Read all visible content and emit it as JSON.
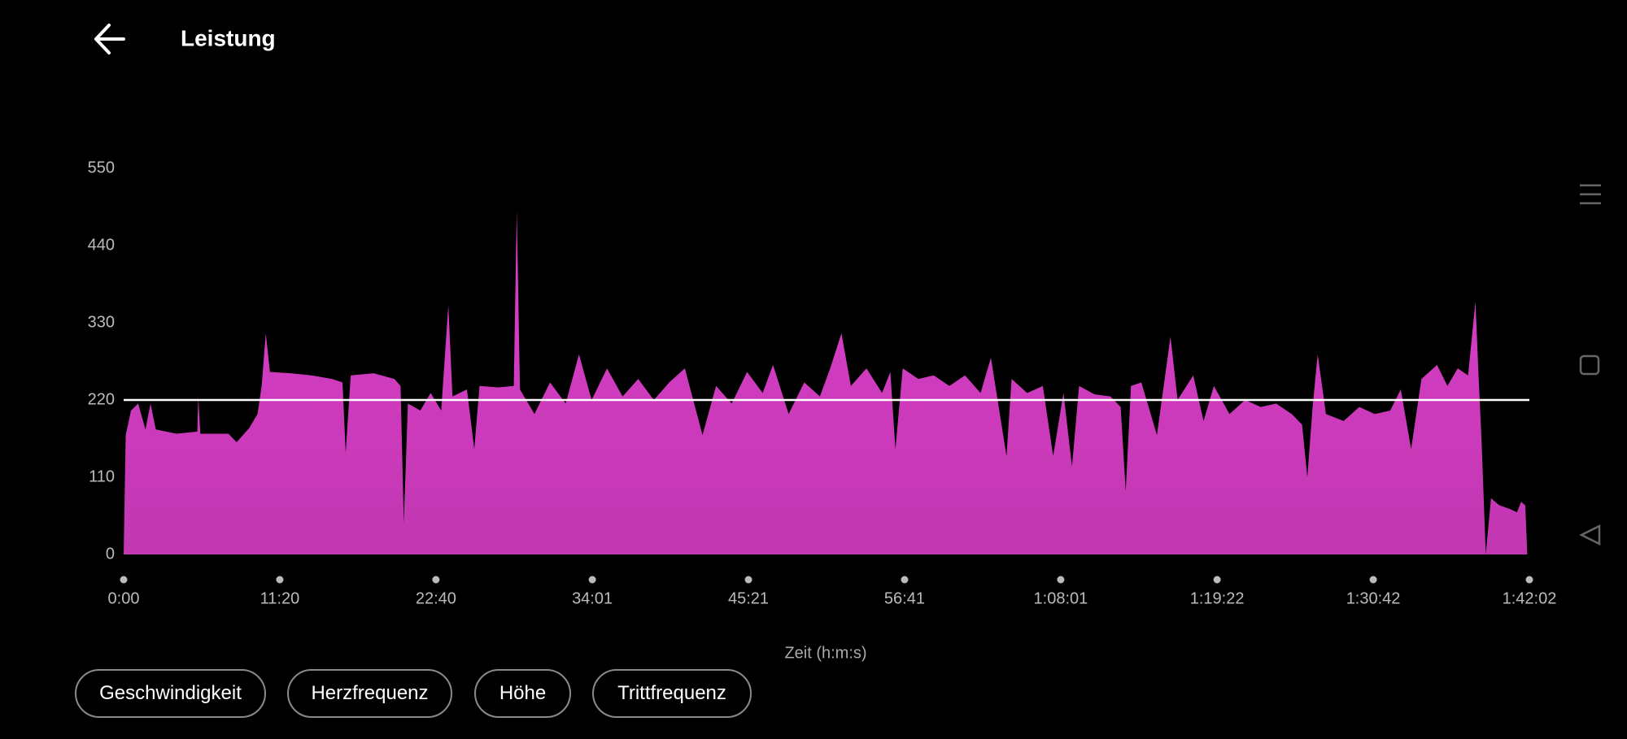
{
  "header": {
    "title": "Leistung"
  },
  "chart_data": {
    "type": "area",
    "x": [
      0,
      9,
      32,
      63,
      95,
      117,
      140,
      230,
      321,
      325,
      334,
      456,
      492,
      547,
      583,
      601,
      619,
      637,
      727,
      818,
      908,
      953,
      967,
      989,
      1089,
      1179,
      1206,
      1220,
      1238,
      1292,
      1337,
      1383,
      1414,
      1432,
      1495,
      1527,
      1550,
      1631,
      1699,
      1712,
      1726,
      1789,
      1857,
      1925,
      1983,
      2038,
      2105,
      2173,
      2241,
      2309,
      2376,
      2444,
      2521,
      2580,
      2648,
      2715,
      2783,
      2828,
      2896,
      2964,
      3032,
      3077,
      3126,
      3167,
      3235,
      3303,
      3339,
      3361,
      3393,
      3461,
      3528,
      3596,
      3664,
      3732,
      3777,
      3845,
      3867,
      3935,
      4003,
      4048,
      4093,
      4130,
      4161,
      4229,
      4297,
      4342,
      4364,
      4387,
      4432,
      4500,
      4559,
      4590,
      4658,
      4703,
      4748,
      4816,
      4884,
      4952,
      5019,
      5087,
      5132,
      5155,
      5178,
      5200,
      5236,
      5313,
      5381,
      5449,
      5516,
      5562,
      5607,
      5652,
      5720,
      5765,
      5810,
      5855,
      5887,
      5900,
      5914,
      5932,
      5955,
      5991,
      6036,
      6068,
      6086,
      6104,
      6113
    ],
    "values": [
      0,
      170,
      205,
      215,
      178,
      215,
      178,
      172,
      175,
      225,
      172,
      172,
      160,
      180,
      200,
      240,
      315,
      260,
      258,
      255,
      250,
      245,
      145,
      255,
      258,
      250,
      240,
      45,
      215,
      205,
      230,
      205,
      355,
      225,
      235,
      150,
      240,
      238,
      240,
      490,
      235,
      200,
      245,
      215,
      285,
      220,
      265,
      225,
      250,
      220,
      245,
      265,
      170,
      240,
      215,
      260,
      230,
      270,
      200,
      245,
      225,
      265,
      315,
      240,
      265,
      230,
      260,
      150,
      265,
      250,
      255,
      240,
      255,
      230,
      280,
      140,
      250,
      230,
      240,
      140,
      230,
      125,
      240,
      228,
      225,
      210,
      90,
      240,
      245,
      170,
      310,
      220,
      255,
      190,
      240,
      200,
      220,
      210,
      215,
      200,
      185,
      110,
      210,
      285,
      200,
      190,
      210,
      200,
      205,
      235,
      150,
      250,
      270,
      240,
      265,
      255,
      360,
      260,
      160,
      0,
      80,
      70,
      65,
      60,
      75,
      70,
      0
    ],
    "color": "#dc3fca",
    "reference_line": 220,
    "xlabel": "Zeit (h:m:s)",
    "xlim": [
      0,
      6122
    ],
    "ylim": [
      0,
      550
    ],
    "yticks": [
      0,
      110,
      220,
      330,
      440,
      550
    ],
    "xticks": [
      {
        "value": 0,
        "label": "0:00"
      },
      {
        "value": 680,
        "label": "11:20"
      },
      {
        "value": 1360,
        "label": "22:40"
      },
      {
        "value": 2041,
        "label": "34:01"
      },
      {
        "value": 2721,
        "label": "45:21"
      },
      {
        "value": 3401,
        "label": "56:41"
      },
      {
        "value": 4081,
        "label": "1:08:01"
      },
      {
        "value": 4762,
        "label": "1:19:22"
      },
      {
        "value": 5442,
        "label": "1:30:42"
      },
      {
        "value": 6122,
        "label": "1:42:02"
      }
    ]
  },
  "buttons": [
    "Geschwindigkeit",
    "Herzfrequenz",
    "Höhe",
    "Trittfrequenz"
  ]
}
